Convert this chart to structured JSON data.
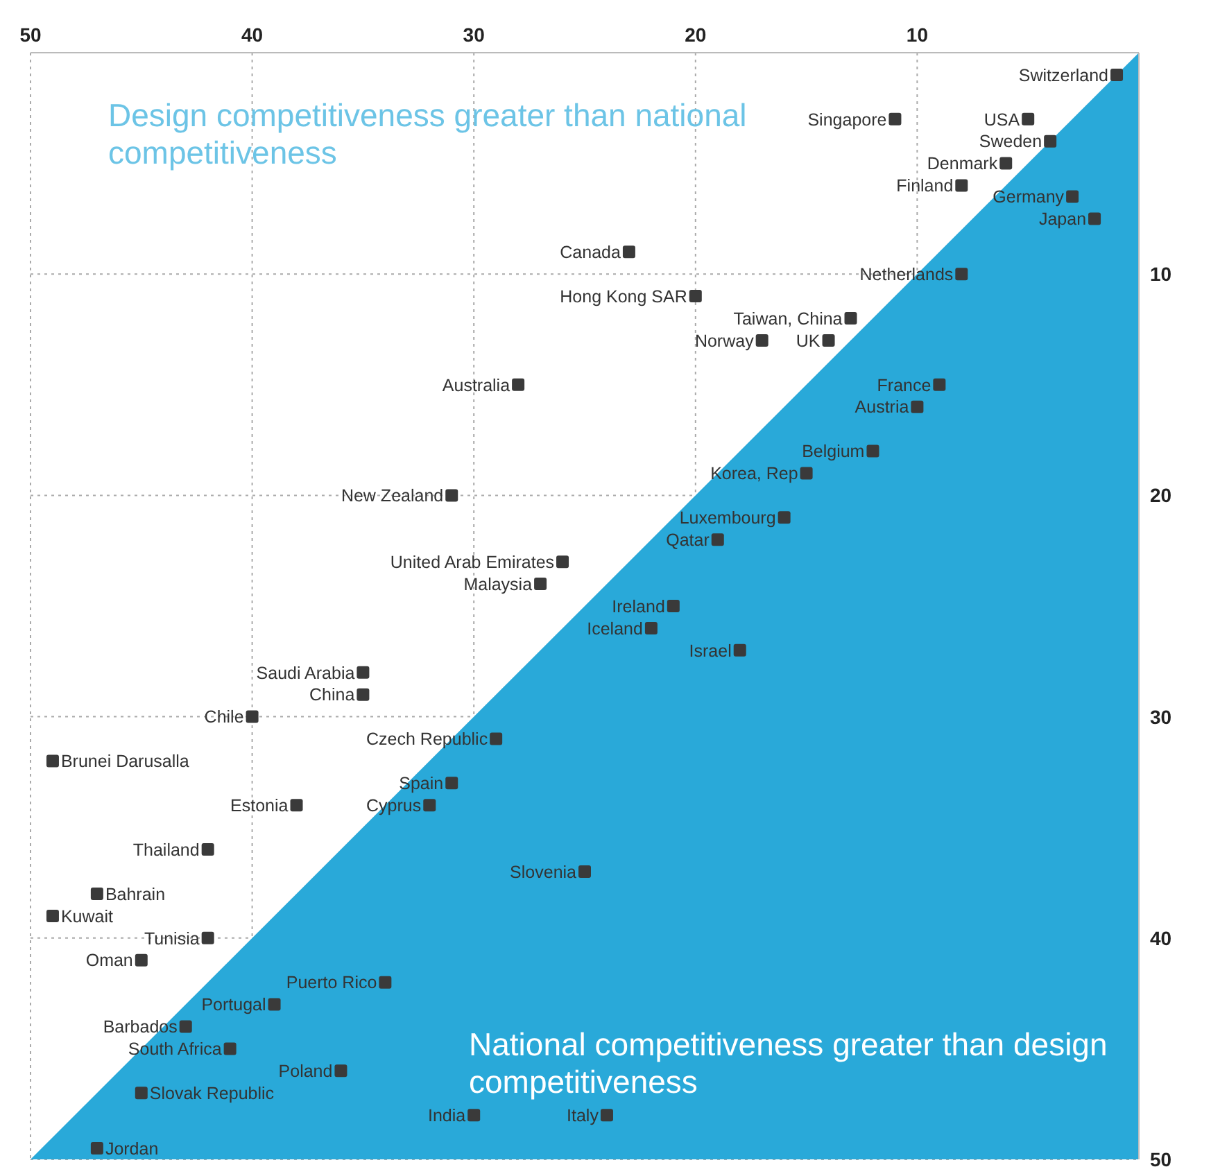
{
  "chart_data": {
    "type": "scatter",
    "xlim": [
      50,
      0
    ],
    "ylim": [
      50,
      0
    ],
    "xticks": [
      50,
      40,
      30,
      20,
      10
    ],
    "yticks": [
      10,
      20,
      30,
      40,
      50
    ],
    "grid": true,
    "series": [
      {
        "type": "area",
        "color": "#29a9d9",
        "x": [
          50,
          0
        ],
        "values": [
          50,
          0
        ]
      },
      {
        "marker": "square",
        "color": "#3a3a3a",
        "x": [
          1,
          5,
          11,
          4,
          6,
          8,
          3,
          2,
          23,
          20,
          8,
          13,
          14,
          17,
          28,
          9,
          10,
          12,
          15,
          31,
          16,
          19,
          26,
          27,
          21,
          22,
          18,
          35,
          35,
          40,
          49,
          29,
          31,
          32,
          38,
          42,
          25,
          47,
          49,
          42,
          45,
          34,
          39,
          43,
          41,
          36,
          45,
          30,
          24,
          47
        ],
        "values": [
          1,
          3,
          3,
          4,
          5,
          6,
          6.5,
          7.5,
          9,
          11,
          10,
          12,
          13,
          13,
          15,
          15,
          16,
          18,
          19,
          20,
          21,
          22,
          23,
          24,
          25,
          26,
          27,
          28,
          29,
          30,
          32,
          31,
          33,
          34,
          34,
          36,
          37,
          38,
          39,
          40,
          41,
          42,
          43,
          44,
          45,
          46,
          47,
          48,
          48,
          49.5
        ]
      }
    ],
    "annotations": [
      "Design competitiveness greater than national competitiveness",
      "National competitiveness greater than design competitiveness",
      {
        "text": "Switzerland",
        "x": 1,
        "y": 1
      },
      {
        "text": "USA",
        "x": 5,
        "y": 3
      },
      {
        "text": "Singapore",
        "x": 11,
        "y": 3
      },
      {
        "text": "Sweden",
        "x": 4,
        "y": 4
      },
      {
        "text": "Denmark",
        "x": 6,
        "y": 5
      },
      {
        "text": "Finland",
        "x": 8,
        "y": 6
      },
      {
        "text": "Germany",
        "x": 3,
        "y": 6.5
      },
      {
        "text": "Japan",
        "x": 2,
        "y": 7.5
      },
      {
        "text": "Canada",
        "x": 23,
        "y": 9
      },
      {
        "text": "Hong Kong SAR",
        "x": 20,
        "y": 11
      },
      {
        "text": "Netherlands",
        "x": 8,
        "y": 10
      },
      {
        "text": "Taiwan, China",
        "x": 13,
        "y": 12
      },
      {
        "text": "UK",
        "x": 14,
        "y": 13
      },
      {
        "text": "Norway",
        "x": 17,
        "y": 13
      },
      {
        "text": "Australia",
        "x": 28,
        "y": 15
      },
      {
        "text": "France",
        "x": 9,
        "y": 15
      },
      {
        "text": "Austria",
        "x": 10,
        "y": 16
      },
      {
        "text": "Belgium",
        "x": 12,
        "y": 18
      },
      {
        "text": "Korea, Rep",
        "x": 15,
        "y": 19
      },
      {
        "text": "New Zealand",
        "x": 31,
        "y": 20
      },
      {
        "text": "Luxembourg",
        "x": 16,
        "y": 21
      },
      {
        "text": "Qatar",
        "x": 19,
        "y": 22
      },
      {
        "text": "United Arab Emirates",
        "x": 26,
        "y": 23
      },
      {
        "text": "Malaysia",
        "x": 27,
        "y": 24
      },
      {
        "text": "Ireland",
        "x": 21,
        "y": 25
      },
      {
        "text": "Iceland",
        "x": 22,
        "y": 26
      },
      {
        "text": "Israel",
        "x": 18,
        "y": 27
      },
      {
        "text": "Saudi Arabia",
        "x": 35,
        "y": 28
      },
      {
        "text": "China",
        "x": 35,
        "y": 29
      },
      {
        "text": "Chile",
        "x": 40,
        "y": 30
      },
      {
        "text": "Brunei Darusalla",
        "x": 49,
        "y": 32
      },
      {
        "text": "Czech Republic",
        "x": 29,
        "y": 31
      },
      {
        "text": "Spain",
        "x": 31,
        "y": 33
      },
      {
        "text": "Cyprus",
        "x": 32,
        "y": 34
      },
      {
        "text": "Estonia",
        "x": 38,
        "y": 34
      },
      {
        "text": "Thailand",
        "x": 42,
        "y": 36
      },
      {
        "text": "Slovenia",
        "x": 25,
        "y": 37
      },
      {
        "text": "Bahrain",
        "x": 47,
        "y": 38
      },
      {
        "text": "Kuwait",
        "x": 49,
        "y": 39
      },
      {
        "text": "Tunisia",
        "x": 42,
        "y": 40
      },
      {
        "text": "Oman",
        "x": 45,
        "y": 41
      },
      {
        "text": "Puerto Rico",
        "x": 34,
        "y": 42
      },
      {
        "text": "Portugal",
        "x": 39,
        "y": 43
      },
      {
        "text": "Barbados",
        "x": 43,
        "y": 44
      },
      {
        "text": "South Africa",
        "x": 41,
        "y": 45
      },
      {
        "text": "Poland",
        "x": 36,
        "y": 46
      },
      {
        "text": "Slovak Republic",
        "x": 45,
        "y": 47
      },
      {
        "text": "India",
        "x": 30,
        "y": 48
      },
      {
        "text": "Italy",
        "x": 24,
        "y": 48
      },
      {
        "text": "Jordan",
        "x": 47,
        "y": 49.5
      }
    ]
  }
}
